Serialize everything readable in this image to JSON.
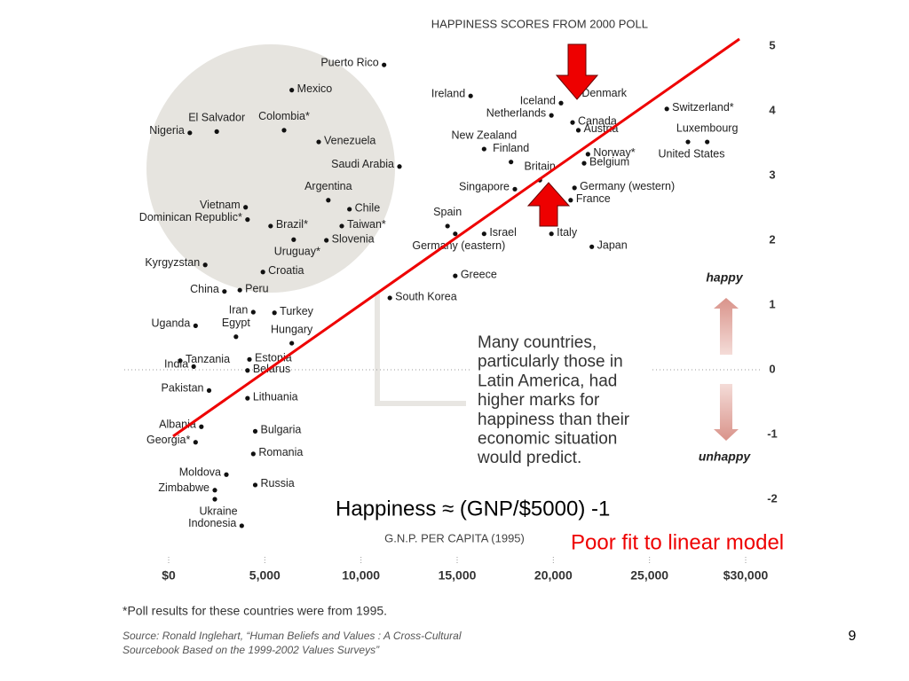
{
  "slide_number": "9",
  "overlay": {
    "formula": "Happiness ≈ (GNP/$5000) -1",
    "note": "Poor fit to linear model"
  },
  "chart_data": {
    "type": "scatter",
    "title": "HAPPINESS SCORES FROM 2000 POLL",
    "x_label": "G.N.P. PER CAPITA (1995)",
    "annotation": [
      "Many countries,",
      "particularly those in",
      "Latin America, had",
      "higher marks for",
      "happiness than their",
      "economic situation",
      "would predict."
    ],
    "happy_label": "happy",
    "unhappy_label": "unhappy",
    "footnote": "*Poll results for these countries were from 1995.",
    "source": [
      "Source: Ronald Inglehart, “Human Beliefs and Values : A Cross-Cultural",
      "Sourcebook Based on the 1999-2002 Values Surveys”"
    ],
    "point_labels": [
      "Puerto Rico",
      "Mexico",
      "El Salvador",
      "Colombia*",
      "Nigeria",
      "Venezuela",
      "Saudi Arabia",
      "Argentina",
      "Chile",
      "Vietnam",
      "Brazil*",
      "Dominican Republic*",
      "Taiwan*",
      "Slovenia",
      "Uruguay*",
      "Kyrgyzstan",
      "Croatia",
      "China",
      "Peru",
      "Iran",
      "Turkey",
      "Uganda",
      "Egypt",
      "Tanzania",
      "Hungary",
      "India",
      "Estonia",
      "Belarus",
      "Pakistan",
      "Lithuania",
      "Albania",
      "Georgia*",
      "Bulgaria",
      "Romania",
      "Moldova",
      "Russia",
      "Ukraine",
      "Zimbabwe",
      "Indonesia",
      "Ireland",
      "Iceland",
      "Denmark",
      "Netherlands",
      "Canada",
      "Austria",
      "New Zealand",
      "Switzerland*",
      "Luxembourg",
      "United States",
      "Finland",
      "Britain",
      "Norway*",
      "Belgium",
      "Singapore",
      "Germany (western)",
      "France",
      "Spain",
      "Israel",
      "Italy",
      "Germany (eastern)",
      "Japan",
      "Greece",
      "South Korea"
    ],
    "x": [
      11200,
      6400,
      2500,
      6000,
      1100,
      7800,
      12000,
      8300,
      9400,
      4000,
      5300,
      4100,
      9000,
      8200,
      6500,
      1900,
      4900,
      2900,
      3700,
      4400,
      5500,
      1400,
      3500,
      600,
      6400,
      1300,
      4200,
      4100,
      2100,
      4100,
      1700,
      1400,
      4500,
      4400,
      3000,
      4500,
      2400,
      2400,
      3800,
      15700,
      20400,
      21200,
      19900,
      21000,
      21300,
      16400,
      25900,
      28000,
      27000,
      17800,
      19300,
      21800,
      21600,
      18000,
      21100,
      20900,
      14500,
      16400,
      19900,
      14900,
      22000,
      14900,
      11500
    ],
    "values": [
      4.71,
      4.32,
      3.68,
      3.7,
      3.66,
      3.52,
      3.14,
      2.62,
      2.48,
      2.51,
      2.22,
      2.32,
      2.22,
      2.0,
      2.01,
      1.62,
      1.51,
      1.21,
      1.23,
      0.89,
      0.88,
      0.68,
      0.51,
      0.14,
      0.41,
      0.05,
      0.16,
      -0.01,
      -0.32,
      -0.44,
      -0.88,
      -1.12,
      -0.95,
      -1.3,
      -1.62,
      -1.78,
      -2.0,
      -1.86,
      -2.41,
      4.23,
      4.12,
      4.25,
      3.93,
      3.82,
      3.7,
      3.41,
      4.03,
      3.52,
      3.52,
      3.21,
      2.93,
      3.33,
      3.19,
      2.79,
      2.81,
      2.62,
      2.22,
      2.1,
      2.1,
      2.1,
      1.9,
      1.45,
      1.11
    ],
    "color": "#111111",
    "xlim": [
      0,
      30000
    ],
    "ylim": [
      -2.5,
      5
    ],
    "xticks": [
      {
        "value": 0,
        "label": "$0"
      },
      {
        "value": 5000,
        "label": "5,000"
      },
      {
        "value": 10000,
        "label": "10,000"
      },
      {
        "value": 15000,
        "label": "15,000"
      },
      {
        "value": 20000,
        "label": "20,000"
      },
      {
        "value": 25000,
        "label": "25,000"
      },
      {
        "value": 30000,
        "label": "$30,000"
      }
    ],
    "yticks": [
      5,
      4,
      3,
      2,
      1,
      0,
      -1,
      -2
    ]
  }
}
